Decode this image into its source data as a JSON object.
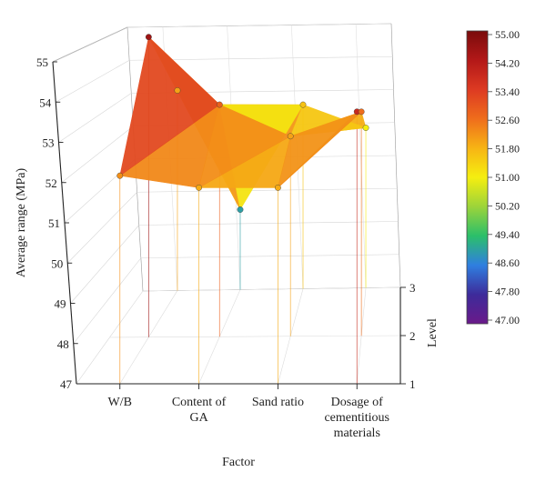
{
  "chart_data": {
    "type": "surface",
    "xlabel": "Factor",
    "ylabel": "Average range (MPa)",
    "zlabel": "Level",
    "factors": [
      [
        "W/B"
      ],
      [
        "Content of",
        "GA"
      ],
      [
        "Sand ratio"
      ],
      [
        "Dosage of",
        "cementitious",
        "materials"
      ]
    ],
    "levels": [
      1,
      2,
      3
    ],
    "y_ticks": [
      "47",
      "48",
      "49",
      "50",
      "51",
      "52",
      "53",
      "54",
      "55"
    ],
    "ylim": [
      47,
      55
    ],
    "grid": true,
    "colorbar": {
      "ticks": [
        "55.00",
        "54.20",
        "53.40",
        "52.60",
        "51.80",
        "51.00",
        "50.20",
        "49.40",
        "48.60",
        "47.80",
        "47.00"
      ],
      "range": [
        47.0,
        55.0
      ],
      "colors": [
        "#6a1a8a",
        "#3d2b9a",
        "#2f7fe0",
        "#2bbf6a",
        "#9cd43a",
        "#f5ee10",
        "#f7b414",
        "#ef6d1c",
        "#dd3a22",
        "#b31818",
        "#7a0c0c"
      ]
    },
    "series": [
      {
        "values": [
          52.2,
          51.9,
          51.9,
          53.8
        ]
      },
      {
        "values": [
          54.5,
          52.8,
          52.0,
          52.6
        ]
      },
      {
        "values": [
          52.0,
          49.0,
          51.6,
          51.0
        ]
      }
    ]
  }
}
